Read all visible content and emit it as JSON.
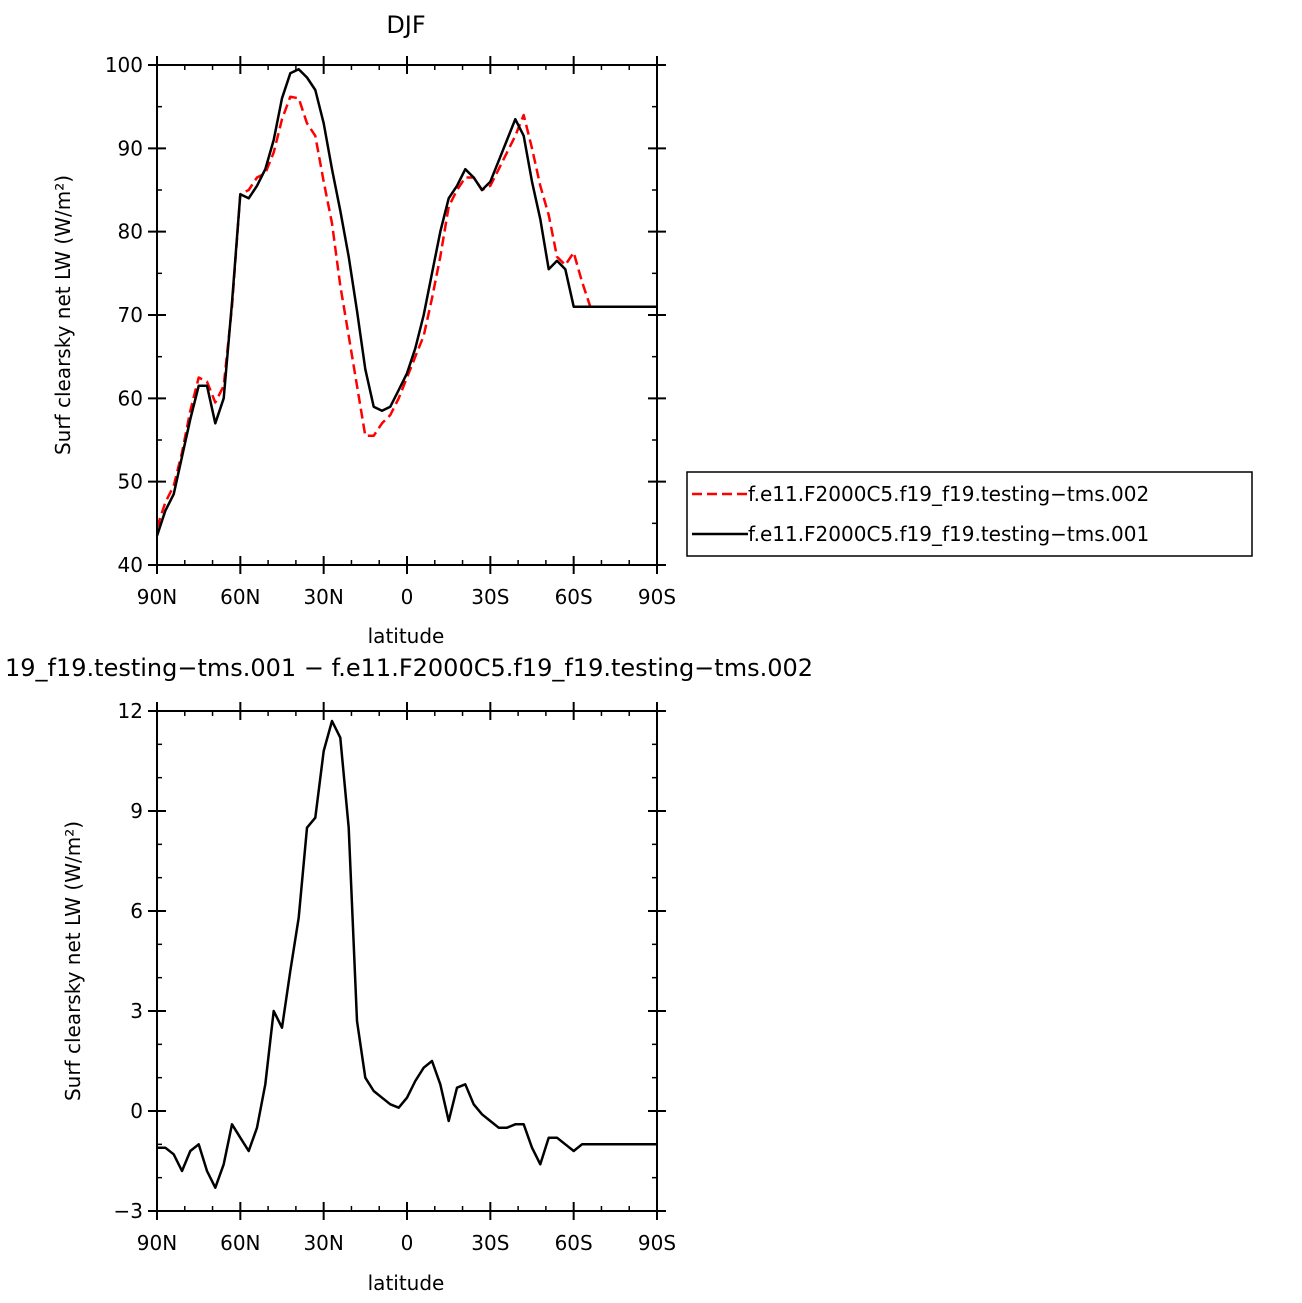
{
  "chart_data": [
    {
      "type": "line",
      "title": "DJF",
      "xlabel": "latitude",
      "ylabel": "Surf clearsky net LW (W/m²)",
      "xlim": [
        90,
        -90
      ],
      "ylim": [
        40,
        100
      ],
      "xticks": [
        90,
        60,
        30,
        0,
        -30,
        -60,
        -90
      ],
      "xtick_labels": [
        "90N",
        "60N",
        "30N",
        "0",
        "30S",
        "60S",
        "90S"
      ],
      "yticks": [
        40,
        50,
        60,
        70,
        80,
        90,
        100
      ],
      "ytick_labels": [
        "40",
        "50",
        "60",
        "70",
        "80",
        "90",
        "100"
      ],
      "grid": false,
      "legend_position": "right, outside plot",
      "series": [
        {
          "name": "f.e11.F2000C5.f19_f19.testing−tms.002",
          "color": "#ff0000",
          "dash": "dashed",
          "x": [
            90,
            87,
            84,
            81,
            78,
            75,
            72,
            69,
            66,
            63,
            60,
            57,
            54,
            51,
            48,
            45,
            42,
            39,
            36,
            33,
            30,
            27,
            24,
            21,
            18,
            15,
            12,
            9,
            6,
            3,
            0,
            -3,
            -6,
            -9,
            -12,
            -15,
            -18,
            -21,
            -24,
            -27,
            -30,
            -33,
            -36,
            -39,
            -42,
            -45,
            -48,
            -51,
            -54,
            -57,
            -60,
            -63,
            -66,
            -69,
            -72,
            -75,
            -78,
            -81,
            -84,
            -87,
            -90
          ],
          "y": [
            44.5,
            47.5,
            49.5,
            53.5,
            58.5,
            62.5,
            62.0,
            59.5,
            61.5,
            71.0,
            84.5,
            85.0,
            86.5,
            87.0,
            89.5,
            93.5,
            96.2,
            96.0,
            93.0,
            91.5,
            86.0,
            81.0,
            73.5,
            67.5,
            61.5,
            55.5,
            55.5,
            57.0,
            58.0,
            60.0,
            62.5,
            65.0,
            67.5,
            72.0,
            77.0,
            83.0,
            85.0,
            86.5,
            86.5,
            85.0,
            85.5,
            87.5,
            89.5,
            91.5,
            94.0,
            90.0,
            85.5,
            82.0,
            77.0,
            76.0,
            77.5,
            74.0,
            71.0,
            71.0,
            71.0,
            71.0,
            71.0,
            71.0,
            71.0,
            71.0,
            71.0
          ]
        },
        {
          "name": "f.e11.F2000C5.f19_f19.testing−tms.001",
          "color": "#000000",
          "dash": "solid",
          "x": [
            90,
            87,
            84,
            81,
            78,
            75,
            72,
            69,
            66,
            63,
            60,
            57,
            54,
            51,
            48,
            45,
            42,
            39,
            36,
            33,
            30,
            27,
            24,
            21,
            18,
            15,
            12,
            9,
            6,
            3,
            0,
            -3,
            -6,
            -9,
            -12,
            -15,
            -18,
            -21,
            -24,
            -27,
            -30,
            -33,
            -36,
            -39,
            -42,
            -45,
            -48,
            -51,
            -54,
            -57,
            -60,
            -63,
            -66,
            -69,
            -72,
            -75,
            -78,
            -81,
            -84,
            -87,
            -90
          ],
          "y": [
            43.5,
            46.5,
            48.5,
            53.0,
            57.5,
            61.5,
            61.5,
            57.0,
            60.0,
            71.5,
            84.5,
            84.0,
            85.5,
            87.5,
            91.0,
            96.0,
            99.0,
            99.5,
            98.5,
            97.0,
            93.0,
            87.5,
            82.5,
            77.0,
            70.5,
            63.5,
            59.0,
            58.5,
            59.0,
            61.0,
            63.0,
            66.0,
            70.0,
            75.0,
            80.0,
            84.0,
            85.5,
            87.5,
            86.5,
            85.0,
            86.0,
            88.5,
            91.0,
            93.5,
            91.5,
            86.0,
            81.5,
            75.5,
            76.5,
            75.5,
            71.0,
            71.0,
            71.0,
            71.0,
            71.0,
            71.0,
            71.0,
            71.0,
            71.0,
            71.0,
            71.0
          ]
        }
      ]
    },
    {
      "type": "line",
      "title": "19_f19.testing−tms.001 − f.e11.F2000C5.f19_f19.testing−tms.002",
      "xlabel": "latitude",
      "ylabel": "Surf clearsky net LW (W/m²)",
      "xlim": [
        90,
        -90
      ],
      "ylim": [
        -3,
        12
      ],
      "xticks": [
        90,
        60,
        30,
        0,
        -30,
        -60,
        -90
      ],
      "xtick_labels": [
        "90N",
        "60N",
        "30N",
        "0",
        "30S",
        "60S",
        "90S"
      ],
      "yticks": [
        -3,
        0,
        3,
        6,
        9,
        12
      ],
      "ytick_labels": [
        "−3",
        "0",
        "3",
        "6",
        "9",
        "12"
      ],
      "grid": false,
      "series": [
        {
          "color": "#000000",
          "dash": "solid",
          "x": [
            90,
            87,
            84,
            81,
            78,
            75,
            72,
            69,
            66,
            63,
            60,
            57,
            54,
            51,
            48,
            45,
            42,
            39,
            36,
            33,
            30,
            27,
            24,
            21,
            18,
            15,
            12,
            9,
            6,
            3,
            0,
            -3,
            -6,
            -9,
            -12,
            -15,
            -18,
            -21,
            -24,
            -27,
            -30,
            -33,
            -36,
            -39,
            -42,
            -45,
            -48,
            -51,
            -54,
            -57,
            -60,
            -63,
            -66,
            -69,
            -72,
            -75,
            -78,
            -81,
            -84,
            -87,
            -90
          ],
          "y": [
            -1.1,
            -1.1,
            -1.3,
            -1.8,
            -1.2,
            -1.0,
            -1.8,
            -2.3,
            -1.6,
            -0.4,
            -0.8,
            -1.2,
            -0.5,
            0.8,
            3.0,
            2.5,
            4.2,
            5.8,
            8.5,
            8.8,
            10.8,
            11.7,
            11.2,
            8.5,
            2.7,
            1.0,
            0.6,
            0.4,
            0.2,
            0.1,
            0.4,
            0.9,
            1.3,
            1.5,
            0.8,
            -0.3,
            0.7,
            0.8,
            0.2,
            -0.1,
            -0.3,
            -0.5,
            -0.5,
            -0.4,
            -0.4,
            -1.1,
            -1.6,
            -0.8,
            -0.8,
            -1.0,
            -1.2,
            -1.0,
            -1.0,
            -1.0,
            -1.0,
            -1.0,
            -1.0,
            -1.0,
            -1.0,
            -1.0,
            -1.0
          ]
        }
      ]
    }
  ]
}
